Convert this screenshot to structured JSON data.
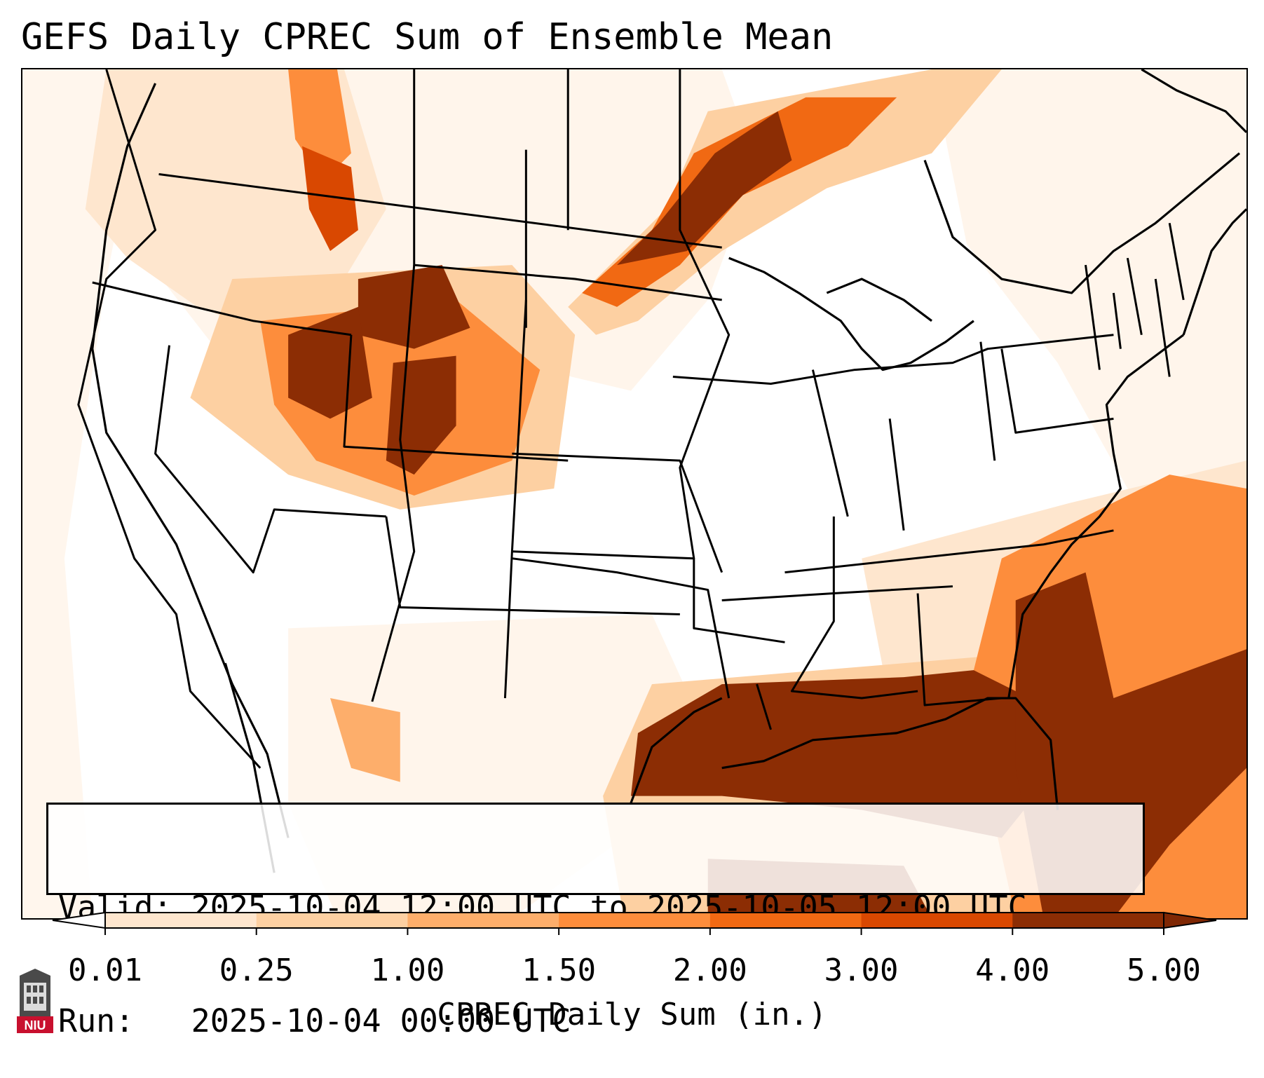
{
  "title": "GEFS Daily CPREC Sum of Ensemble Mean",
  "info": {
    "valid_label": "Valid:",
    "valid_value": "2025-10-04 12:00 UTC to 2025-10-05 12:00 UTC",
    "run_label": "Run:",
    "run_value": "2025-10-04 00:00 UTC"
  },
  "colorbar": {
    "label": "CPREC Daily Sum (in.)",
    "ticks": [
      "0.01",
      "0.25",
      "1.00",
      "1.50",
      "2.00",
      "3.00",
      "4.00",
      "5.00"
    ],
    "colors": [
      "#fff5eb",
      "#fee6ce",
      "#fdd0a2",
      "#fdae6b",
      "#fd8d3c",
      "#f16913",
      "#d94801",
      "#8c2d04"
    ],
    "under_color": "#ffffff",
    "over_color": "#7f2704"
  },
  "logo": {
    "name": "niu-logo-icon",
    "text": "NIU",
    "color": "#c8102e"
  },
  "map": {
    "palette": {
      "c0": "#fff5eb",
      "c1": "#fee6ce",
      "c2": "#fdd0a2",
      "c3": "#fdae6b",
      "c4": "#fd8d3c",
      "c5": "#f16913",
      "c6": "#d94801",
      "c7": "#8c2d04"
    }
  }
}
